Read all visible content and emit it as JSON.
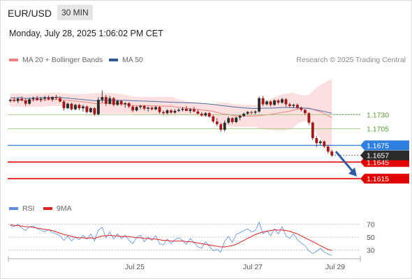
{
  "header": {
    "pair": "EUR/USD",
    "timeframe": "30 MIN",
    "timestamp": "Monday, July 28, 2025 1:06:02 PM CET"
  },
  "legend": {
    "items": [
      {
        "label": "MA 20 + Bollinger Bands",
        "color": "#f08080"
      },
      {
        "label": "MA 50",
        "color": "#2f5a8f"
      }
    ],
    "credit": "Research © 2025 Trading Central"
  },
  "rsi_legend": {
    "items": [
      {
        "label": "RSI",
        "color": "#5b8ee0"
      },
      {
        "label": "9MA",
        "color": "#e02020"
      }
    ]
  },
  "colors": {
    "up": "#2a2a2a",
    "down": "#9e1b1b",
    "support": "#e00000",
    "pivot": "#2f7fe0",
    "resistance": "#8fc46a",
    "band": "#fbd3d3",
    "ma20": "#f08080",
    "ma50": "#4a6ea8",
    "arrow": "#2f5aa0",
    "rsi": "#5b8ee0",
    "rsi_ma": "#e02020"
  },
  "chart_data": [
    {
      "type": "candlestick",
      "x_ticks": [
        "Jul 25",
        "Jul 27",
        "Jul 29"
      ],
      "ylim": [
        1.158,
        1.1815
      ],
      "levels": [
        {
          "value": 1.173,
          "label": "1.1730",
          "kind": "resistance"
        },
        {
          "value": 1.1705,
          "label": "1.1705",
          "kind": "resistance"
        },
        {
          "value": 1.1675,
          "label": "1.1675",
          "kind": "pivot"
        },
        {
          "value": 1.1645,
          "label": "1.1645",
          "kind": "support"
        },
        {
          "value": 1.1615,
          "label": "1.1615",
          "kind": "support"
        }
      ],
      "last_price": {
        "value": 1.1657,
        "label": "1.1657"
      },
      "target_arrow": {
        "from": 1.1664,
        "to": 1.1619
      },
      "candles": [
        [
          1.1755,
          1.1759,
          1.1752,
          1.1757
        ],
        [
          1.1757,
          1.1762,
          1.1753,
          1.1755
        ],
        [
          1.1755,
          1.1761,
          1.1751,
          1.1759
        ],
        [
          1.1759,
          1.1763,
          1.1754,
          1.1756
        ],
        [
          1.1756,
          1.176,
          1.1746,
          1.175
        ],
        [
          1.175,
          1.1761,
          1.1748,
          1.1758
        ],
        [
          1.1758,
          1.1763,
          1.1754,
          1.176
        ],
        [
          1.176,
          1.1764,
          1.1755,
          1.1757
        ],
        [
          1.1757,
          1.1762,
          1.1753,
          1.1759
        ],
        [
          1.1759,
          1.1764,
          1.1755,
          1.1761
        ],
        [
          1.1761,
          1.1765,
          1.1756,
          1.1758
        ],
        [
          1.1758,
          1.1763,
          1.1754,
          1.1762
        ],
        [
          1.1762,
          1.1766,
          1.1757,
          1.176
        ],
        [
          1.176,
          1.1763,
          1.1752,
          1.1754
        ],
        [
          1.1754,
          1.1756,
          1.1738,
          1.1742
        ],
        [
          1.1742,
          1.1752,
          1.174,
          1.175
        ],
        [
          1.175,
          1.1752,
          1.1738,
          1.174
        ],
        [
          1.174,
          1.175,
          1.1738,
          1.1748
        ],
        [
          1.1748,
          1.175,
          1.1738,
          1.1742
        ],
        [
          1.1742,
          1.1748,
          1.1736,
          1.1745
        ],
        [
          1.1745,
          1.1747,
          1.1733,
          1.1735
        ],
        [
          1.1735,
          1.1744,
          1.1733,
          1.1742
        ],
        [
          1.1742,
          1.1744,
          1.1728,
          1.1731
        ],
        [
          1.1731,
          1.1762,
          1.1729,
          1.1757
        ],
        [
          1.1757,
          1.1774,
          1.1752,
          1.1762
        ],
        [
          1.1762,
          1.1766,
          1.1746,
          1.175
        ],
        [
          1.175,
          1.1764,
          1.1748,
          1.176
        ],
        [
          1.176,
          1.1762,
          1.1745,
          1.1748
        ],
        [
          1.1748,
          1.1757,
          1.1746,
          1.1755
        ],
        [
          1.1755,
          1.1757,
          1.1746,
          1.1749
        ],
        [
          1.1749,
          1.1753,
          1.1743,
          1.1751
        ],
        [
          1.1751,
          1.1753,
          1.1742,
          1.1745
        ],
        [
          1.1745,
          1.1747,
          1.1735,
          1.1738
        ],
        [
          1.1738,
          1.1746,
          1.1736,
          1.1744
        ],
        [
          1.1744,
          1.1748,
          1.174,
          1.1746
        ],
        [
          1.1746,
          1.1748,
          1.1738,
          1.1741
        ],
        [
          1.1741,
          1.1745,
          1.1736,
          1.1743
        ],
        [
          1.1743,
          1.1745,
          1.1738,
          1.174
        ],
        [
          1.174,
          1.1746,
          1.1738,
          1.1744
        ],
        [
          1.1744,
          1.1746,
          1.1732,
          1.1735
        ],
        [
          1.1735,
          1.1738,
          1.173,
          1.1733
        ],
        [
          1.1733,
          1.174,
          1.1731,
          1.1738
        ],
        [
          1.1738,
          1.174,
          1.1732,
          1.1734
        ],
        [
          1.1734,
          1.174,
          1.1732,
          1.1737
        ],
        [
          1.1737,
          1.1742,
          1.1735,
          1.1739
        ],
        [
          1.1739,
          1.1744,
          1.1736,
          1.1741
        ],
        [
          1.1741,
          1.1746,
          1.1738,
          1.1737
        ],
        [
          1.1737,
          1.1742,
          1.1733,
          1.174
        ],
        [
          1.174,
          1.1744,
          1.1735,
          1.1736
        ],
        [
          1.1736,
          1.174,
          1.1731,
          1.1732
        ],
        [
          1.1732,
          1.1735,
          1.1727,
          1.1729
        ],
        [
          1.1729,
          1.1735,
          1.1727,
          1.1733
        ],
        [
          1.1733,
          1.1735,
          1.1725,
          1.1727
        ],
        [
          1.1727,
          1.173,
          1.1715,
          1.1718
        ],
        [
          1.1718,
          1.1724,
          1.171,
          1.1713
        ],
        [
          1.1713,
          1.1716,
          1.17,
          1.1703
        ],
        [
          1.1703,
          1.172,
          1.17,
          1.1716
        ],
        [
          1.1716,
          1.1727,
          1.1713,
          1.1724
        ],
        [
          1.1724,
          1.1726,
          1.1714,
          1.1717
        ],
        [
          1.1717,
          1.1727,
          1.1715,
          1.1725
        ],
        [
          1.1725,
          1.173,
          1.172,
          1.1728
        ],
        [
          1.1728,
          1.1734,
          1.1726,
          1.1732
        ],
        [
          1.1732,
          1.1737,
          1.173,
          1.1735
        ],
        [
          1.1735,
          1.1737,
          1.1731,
          1.1734
        ],
        [
          1.1734,
          1.1738,
          1.1731,
          1.1736
        ],
        [
          1.1736,
          1.1763,
          1.1734,
          1.176
        ],
        [
          1.176,
          1.1764,
          1.1746,
          1.1749
        ],
        [
          1.1749,
          1.1756,
          1.1747,
          1.1754
        ],
        [
          1.1754,
          1.1756,
          1.1745,
          1.1748
        ],
        [
          1.1748,
          1.1758,
          1.1746,
          1.1756
        ],
        [
          1.1756,
          1.1758,
          1.1749,
          1.1752
        ],
        [
          1.1752,
          1.1761,
          1.175,
          1.1758
        ],
        [
          1.1758,
          1.176,
          1.1745,
          1.1749
        ],
        [
          1.1749,
          1.1752,
          1.1743,
          1.1746
        ],
        [
          1.1746,
          1.175,
          1.1742,
          1.1748
        ],
        [
          1.1748,
          1.1751,
          1.174,
          1.1743
        ],
        [
          1.1743,
          1.1745,
          1.1736,
          1.1739
        ],
        [
          1.1739,
          1.1741,
          1.173,
          1.1733
        ],
        [
          1.1733,
          1.1735,
          1.1712,
          1.1716
        ],
        [
          1.1716,
          1.1718,
          1.1684,
          1.1688
        ],
        [
          1.1688,
          1.1692,
          1.1672,
          1.1679
        ],
        [
          1.1679,
          1.1685,
          1.1676,
          1.1682
        ],
        [
          1.1682,
          1.1684,
          1.167,
          1.1673
        ],
        [
          1.1673,
          1.1676,
          1.166,
          1.1664
        ],
        [
          1.1664,
          1.1667,
          1.1654,
          1.1657
        ]
      ]
    },
    {
      "type": "line",
      "name": "RSI",
      "yticks": [
        70,
        50,
        30
      ],
      "ylim": [
        20,
        80
      ],
      "series": [
        {
          "name": "RSI",
          "values": [
            68,
            66,
            70,
            64,
            60,
            66,
            67,
            63,
            61,
            58,
            62,
            57,
            55,
            52,
            45,
            52,
            44,
            50,
            46,
            53,
            47,
            55,
            44,
            61,
            65,
            49,
            58,
            47,
            55,
            48,
            53,
            45,
            40,
            50,
            53,
            43,
            50,
            45,
            52,
            40,
            38,
            47,
            40,
            46,
            49,
            45,
            39,
            48,
            42,
            35,
            33,
            43,
            36,
            29,
            31,
            27,
            44,
            51,
            42,
            54,
            57,
            60,
            63,
            58,
            60,
            73,
            55,
            60,
            52,
            63,
            55,
            66,
            52,
            48,
            55,
            46,
            41,
            37,
            29,
            25,
            28,
            33,
            27,
            24,
            22
          ]
        },
        {
          "name": "9MA",
          "values": [
            69,
            68,
            68,
            67,
            66,
            66,
            65,
            64,
            63,
            62,
            61,
            60,
            58,
            56,
            54,
            53,
            51,
            50,
            49,
            49,
            48,
            49,
            48,
            50,
            52,
            52,
            53,
            52,
            52,
            51,
            51,
            51,
            50,
            49,
            49,
            48,
            48,
            47,
            47,
            46,
            45,
            45,
            44,
            44,
            44,
            44,
            43,
            43,
            42,
            41,
            40,
            39,
            38,
            37,
            36,
            35,
            35,
            36,
            37,
            39,
            42,
            45,
            48,
            51,
            54,
            56,
            58,
            59,
            60,
            61,
            61,
            61,
            60,
            59,
            57,
            55,
            52,
            49,
            46,
            43,
            40,
            37,
            34,
            31,
            30
          ]
        }
      ]
    }
  ]
}
